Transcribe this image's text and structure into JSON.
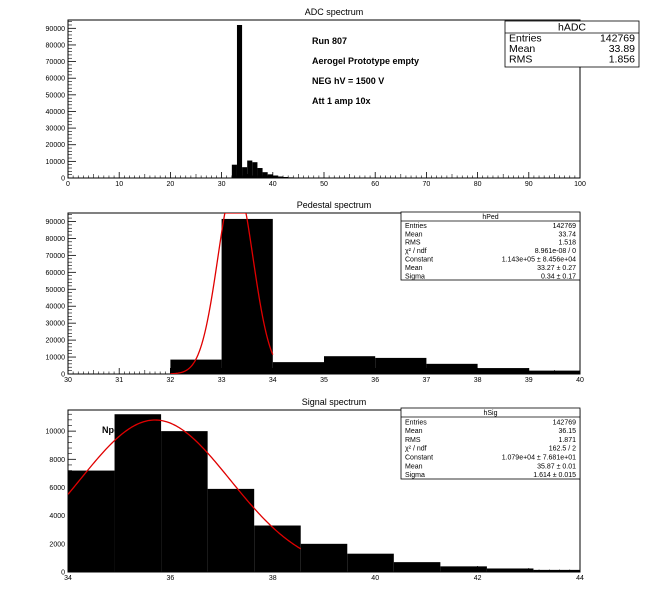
{
  "chart_data": [
    {
      "type": "bar",
      "name": "hADC",
      "title": "ADC spectrum",
      "xlabel": "",
      "ylabel": "",
      "xlim": [
        0,
        100
      ],
      "ylim": [
        0,
        95000
      ],
      "xticks": [
        "0",
        "10",
        "20",
        "30",
        "40",
        "50",
        "60",
        "70",
        "80",
        "90",
        "100"
      ],
      "yticks": [
        "0",
        "10000",
        "20000",
        "30000",
        "40000",
        "50000",
        "60000",
        "70000",
        "80000",
        "90000"
      ],
      "bin_width": 1,
      "bins": [
        {
          "x": 32,
          "y": 8000
        },
        {
          "x": 33,
          "y": 92000
        },
        {
          "x": 34,
          "y": 6500
        },
        {
          "x": 35,
          "y": 10500
        },
        {
          "x": 36,
          "y": 9500
        },
        {
          "x": 37,
          "y": 6000
        },
        {
          "x": 38,
          "y": 3500
        },
        {
          "x": 39,
          "y": 2200
        },
        {
          "x": 40,
          "y": 1500
        },
        {
          "x": 41,
          "y": 900
        },
        {
          "x": 42,
          "y": 600
        },
        {
          "x": 43,
          "y": 400
        },
        {
          "x": 44,
          "y": 250
        },
        {
          "x": 45,
          "y": 150
        }
      ],
      "annotations": [
        "Run  807",
        "Aerogel Prototype empty",
        "NEG hV = 1500 V",
        "Att 1 amp 10x"
      ],
      "stats": {
        "title": "hADC",
        "rows": [
          {
            "label": "Entries",
            "value": "142769"
          },
          {
            "label": "Mean",
            "value": "33.89"
          },
          {
            "label": "RMS",
            "value": "1.856"
          }
        ]
      },
      "fit": null
    },
    {
      "type": "bar",
      "name": "hPed",
      "title": "Pedestal spectrum",
      "xlabel": "",
      "ylabel": "",
      "xlim": [
        30,
        40
      ],
      "ylim": [
        0,
        95000
      ],
      "xticks": [
        "30",
        "31",
        "32",
        "33",
        "34",
        "35",
        "36",
        "37",
        "38",
        "39",
        "40"
      ],
      "yticks": [
        "0",
        "10000",
        "20000",
        "30000",
        "40000",
        "50000",
        "60000",
        "70000",
        "80000",
        "90000"
      ],
      "bin_width": 1,
      "bins": [
        {
          "x": 32,
          "y": 8500
        },
        {
          "x": 33,
          "y": 91500
        },
        {
          "x": 34,
          "y": 7000
        },
        {
          "x": 35,
          "y": 10500
        },
        {
          "x": 36,
          "y": 9500
        },
        {
          "x": 37,
          "y": 6000
        },
        {
          "x": 38,
          "y": 3500
        },
        {
          "x": 39,
          "y": 2000
        }
      ],
      "annotations": [],
      "stats": {
        "title": "hPed",
        "rows": [
          {
            "label": "Entries",
            "value": "142769"
          },
          {
            "label": "Mean",
            "value": "33.74"
          },
          {
            "label": "RMS",
            "value": "1.518"
          },
          {
            "label": "χ² / ndf",
            "value": "8.961e-08 / 0"
          },
          {
            "label": "Constant",
            "value": "1.143e+05 ± 8.456e+04"
          },
          {
            "label": "Mean",
            "value": "33.27 ± 0.27"
          },
          {
            "label": "Sigma",
            "value": "0.34 ± 0.17"
          }
        ]
      },
      "fit": {
        "type": "gaussian",
        "color": "#e00000",
        "constant": 114300,
        "mean": 33.27,
        "sigma": 0.34,
        "range": [
          32,
          34
        ]
      }
    },
    {
      "type": "bar",
      "name": "hSig",
      "title": "Signal spectrum",
      "xlabel": "",
      "ylabel": "",
      "xlim": [
        34,
        45
      ],
      "ylim": [
        0,
        11500
      ],
      "xticks": [
        "34",
        "36",
        "38",
        "40",
        "42",
        "44"
      ],
      "yticks": [
        "0",
        "2000",
        "4000",
        "6000",
        "8000",
        "10000"
      ],
      "bin_width": 1,
      "bins": [
        {
          "x": 34,
          "y": 7200
        },
        {
          "x": 35,
          "y": 11200
        },
        {
          "x": 36,
          "y": 10000
        },
        {
          "x": 37,
          "y": 5900
        },
        {
          "x": 38,
          "y": 3300
        },
        {
          "x": 39,
          "y": 2000
        },
        {
          "x": 40,
          "y": 1300
        },
        {
          "x": 41,
          "y": 700
        },
        {
          "x": 42,
          "y": 400
        },
        {
          "x": 43,
          "y": 250
        },
        {
          "x": 44,
          "y": 150
        }
      ],
      "annotations": [
        "Npe"
      ],
      "stats": {
        "title": "hSig",
        "rows": [
          {
            "label": "Entries",
            "value": "142769"
          },
          {
            "label": "Mean",
            "value": "36.15"
          },
          {
            "label": "RMS",
            "value": "1.871"
          },
          {
            "label": "χ² / ndf",
            "value": "162.5 / 2"
          },
          {
            "label": "Constant",
            "value": "1.079e+04 ± 7.681e+01"
          },
          {
            "label": "Mean",
            "value": "35.87 ± 0.01"
          },
          {
            "label": "Sigma",
            "value": "1.614 ± 0.015"
          }
        ]
      },
      "fit": {
        "type": "gaussian",
        "color": "#e00000",
        "constant": 10790,
        "mean": 35.87,
        "sigma": 1.614,
        "range": [
          34,
          39
        ]
      }
    }
  ]
}
